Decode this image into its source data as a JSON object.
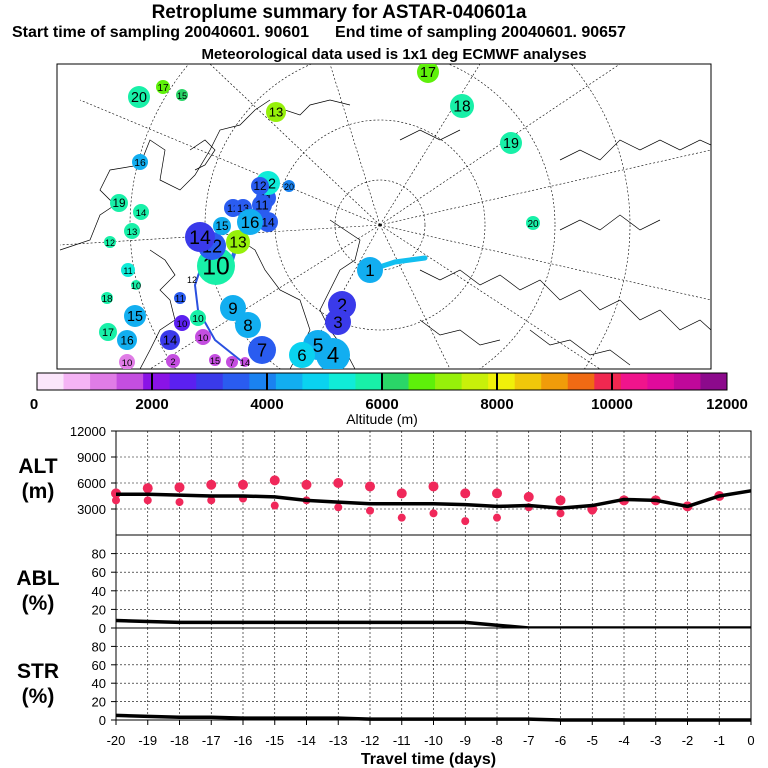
{
  "header": {
    "title": "Retroplume summary for ASTAR-040601a",
    "start_label": "Start time of sampling 20040601. 90601",
    "end_label": "End time of sampling 20040601. 90657",
    "met_label": "Meteorological data used is 1x1 deg ECMWF analyses"
  },
  "colorbar": {
    "colors": [
      "#fbe6fb",
      "#f5b4f5",
      "#e07ce6",
      "#c44ee0",
      "#8a13e6",
      "#5b20f0",
      "#3a3aea",
      "#2a5cf0",
      "#1a82f0",
      "#12aef0",
      "#0ad2f0",
      "#10ecd8",
      "#18f0a8",
      "#2ad668",
      "#5ef00a",
      "#96f00a",
      "#c8f00a",
      "#f0f00a",
      "#f0c80a",
      "#f09c0a",
      "#f06a14",
      "#f02850",
      "#f0148c",
      "#e00a9c",
      "#c0089a",
      "#8c0a8c"
    ],
    "tick_labels": [
      "0",
      "2000",
      "4000",
      "6000",
      "8000",
      "10000",
      "12000"
    ],
    "label": "Altitude (m)"
  },
  "chart_data": [
    {
      "type": "map",
      "description_title": "Retroplume cluster centroids (polar stereographic)",
      "clusters": [
        {
          "label": "1",
          "altitude": 4500,
          "size": "medium"
        },
        {
          "label": "2",
          "altitude": 3000,
          "size": "medium"
        },
        {
          "label": "3",
          "altitude": 3000,
          "size": "medium"
        },
        {
          "label": "4",
          "altitude": 4500,
          "size": "large"
        },
        {
          "label": "5",
          "altitude": 4200,
          "size": "large"
        },
        {
          "label": "6",
          "altitude": 4800,
          "size": "medium"
        },
        {
          "label": "7",
          "altitude": 3600,
          "size": "medium"
        },
        {
          "label": "8",
          "altitude": 4500,
          "size": "medium"
        },
        {
          "label": "9",
          "altitude": 4500,
          "size": "medium"
        },
        {
          "label": "10",
          "altitude": 5800,
          "size": "large"
        },
        {
          "label": "11",
          "altitude": 3400,
          "size": "medium"
        },
        {
          "label": "12",
          "altitude": 3600,
          "size": "medium"
        },
        {
          "label": "13",
          "altitude": 7000,
          "size": "small"
        },
        {
          "label": "14",
          "altitude": 2800,
          "size": "small"
        },
        {
          "label": "15",
          "altitude": 4200,
          "size": "medium"
        },
        {
          "label": "16",
          "altitude": 4500,
          "size": "small"
        },
        {
          "label": "17",
          "altitude": 6500,
          "size": "small"
        },
        {
          "label": "18",
          "altitude": 5800,
          "size": "medium"
        },
        {
          "label": "19",
          "altitude": 5600,
          "size": "small"
        },
        {
          "label": "20",
          "altitude": 5600,
          "size": "small"
        }
      ]
    },
    {
      "type": "line",
      "panel": "ALT",
      "ylabel_line1": "ALT",
      "ylabel_line2": "(m)",
      "ylim": [
        0,
        12000
      ],
      "yticks": [
        "12000",
        "9000",
        "6000",
        "3000"
      ],
      "x": [
        -20,
        -19,
        -18,
        -17,
        -16,
        -15,
        -14,
        -13,
        -12,
        -11,
        -10,
        -9,
        -8,
        -7,
        -6,
        -5,
        -4,
        -3,
        -2,
        -1,
        0
      ],
      "values": [
        4700,
        4700,
        4600,
        4500,
        4500,
        4400,
        4000,
        3800,
        3600,
        3600,
        3600,
        3500,
        3300,
        3400,
        3100,
        3400,
        4100,
        4000,
        3300,
        4500,
        5100
      ],
      "cluster_dots": [
        {
          "x": -20,
          "y": [
            4800,
            4000
          ]
        },
        {
          "x": -19,
          "y": [
            5400,
            4000
          ]
        },
        {
          "x": -18,
          "y": [
            5500,
            3800
          ]
        },
        {
          "x": -17,
          "y": [
            5800,
            4000
          ]
        },
        {
          "x": -16,
          "y": [
            5800,
            4200
          ]
        },
        {
          "x": -15,
          "y": [
            6300,
            3400
          ]
        },
        {
          "x": -14,
          "y": [
            5800,
            4000
          ]
        },
        {
          "x": -13,
          "y": [
            6000,
            3200
          ]
        },
        {
          "x": -12,
          "y": [
            5600,
            2800
          ]
        },
        {
          "x": -11,
          "y": [
            4800,
            2000
          ]
        },
        {
          "x": -10,
          "y": [
            5600,
            2500
          ]
        },
        {
          "x": -9,
          "y": [
            4800,
            1600
          ]
        },
        {
          "x": -8,
          "y": [
            4800,
            2000
          ]
        },
        {
          "x": -7,
          "y": [
            4400,
            3200
          ]
        },
        {
          "x": -6,
          "y": [
            4000,
            2500
          ]
        },
        {
          "x": -5,
          "y": [
            3000,
            2800
          ]
        },
        {
          "x": -4,
          "y": [
            4000
          ]
        },
        {
          "x": -3,
          "y": [
            4000
          ]
        },
        {
          "x": -2,
          "y": [
            3300
          ]
        },
        {
          "x": -1,
          "y": [
            4500
          ]
        }
      ]
    },
    {
      "type": "line",
      "panel": "ABL",
      "ylabel_line1": "ABL",
      "ylabel_line2": "(%)",
      "ylim": [
        0,
        100
      ],
      "yticks": [
        "80",
        "60",
        "40",
        "20",
        "0"
      ],
      "x": [
        -20,
        -19,
        -18,
        -17,
        -16,
        -15,
        -14,
        -13,
        -12,
        -11,
        -10,
        -9,
        -8,
        -7,
        -6,
        -5,
        -4,
        -3,
        -2,
        -1,
        0
      ],
      "values": [
        8,
        7,
        6,
        6,
        6,
        6,
        6,
        6,
        6,
        6,
        6,
        6,
        3,
        0,
        0,
        0,
        0,
        0,
        0,
        0,
        0
      ]
    },
    {
      "type": "line",
      "panel": "STR",
      "ylabel_line1": "STR",
      "ylabel_line2": "(%)",
      "ylim": [
        0,
        100
      ],
      "yticks": [
        "80",
        "60",
        "40",
        "20",
        "0"
      ],
      "x": [
        -20,
        -19,
        -18,
        -17,
        -16,
        -15,
        -14,
        -13,
        -12,
        -11,
        -10,
        -9,
        -8,
        -7,
        -6,
        -5,
        -4,
        -3,
        -2,
        -1,
        0
      ],
      "values": [
        5,
        4,
        3,
        3,
        2,
        2,
        2,
        2,
        1,
        1,
        1,
        1,
        1,
        1,
        0,
        0,
        0,
        0,
        0,
        0,
        0
      ],
      "xticks": [
        "-20",
        "-19",
        "-18",
        "-17",
        "-16",
        "-15",
        "-14",
        "-13",
        "-12",
        "-11",
        "-10",
        "-9",
        "-8",
        "-7",
        "-6",
        "-5",
        "-4",
        "-3",
        "-2",
        "-1",
        "0"
      ],
      "xlabel": "Travel time (days)"
    }
  ]
}
